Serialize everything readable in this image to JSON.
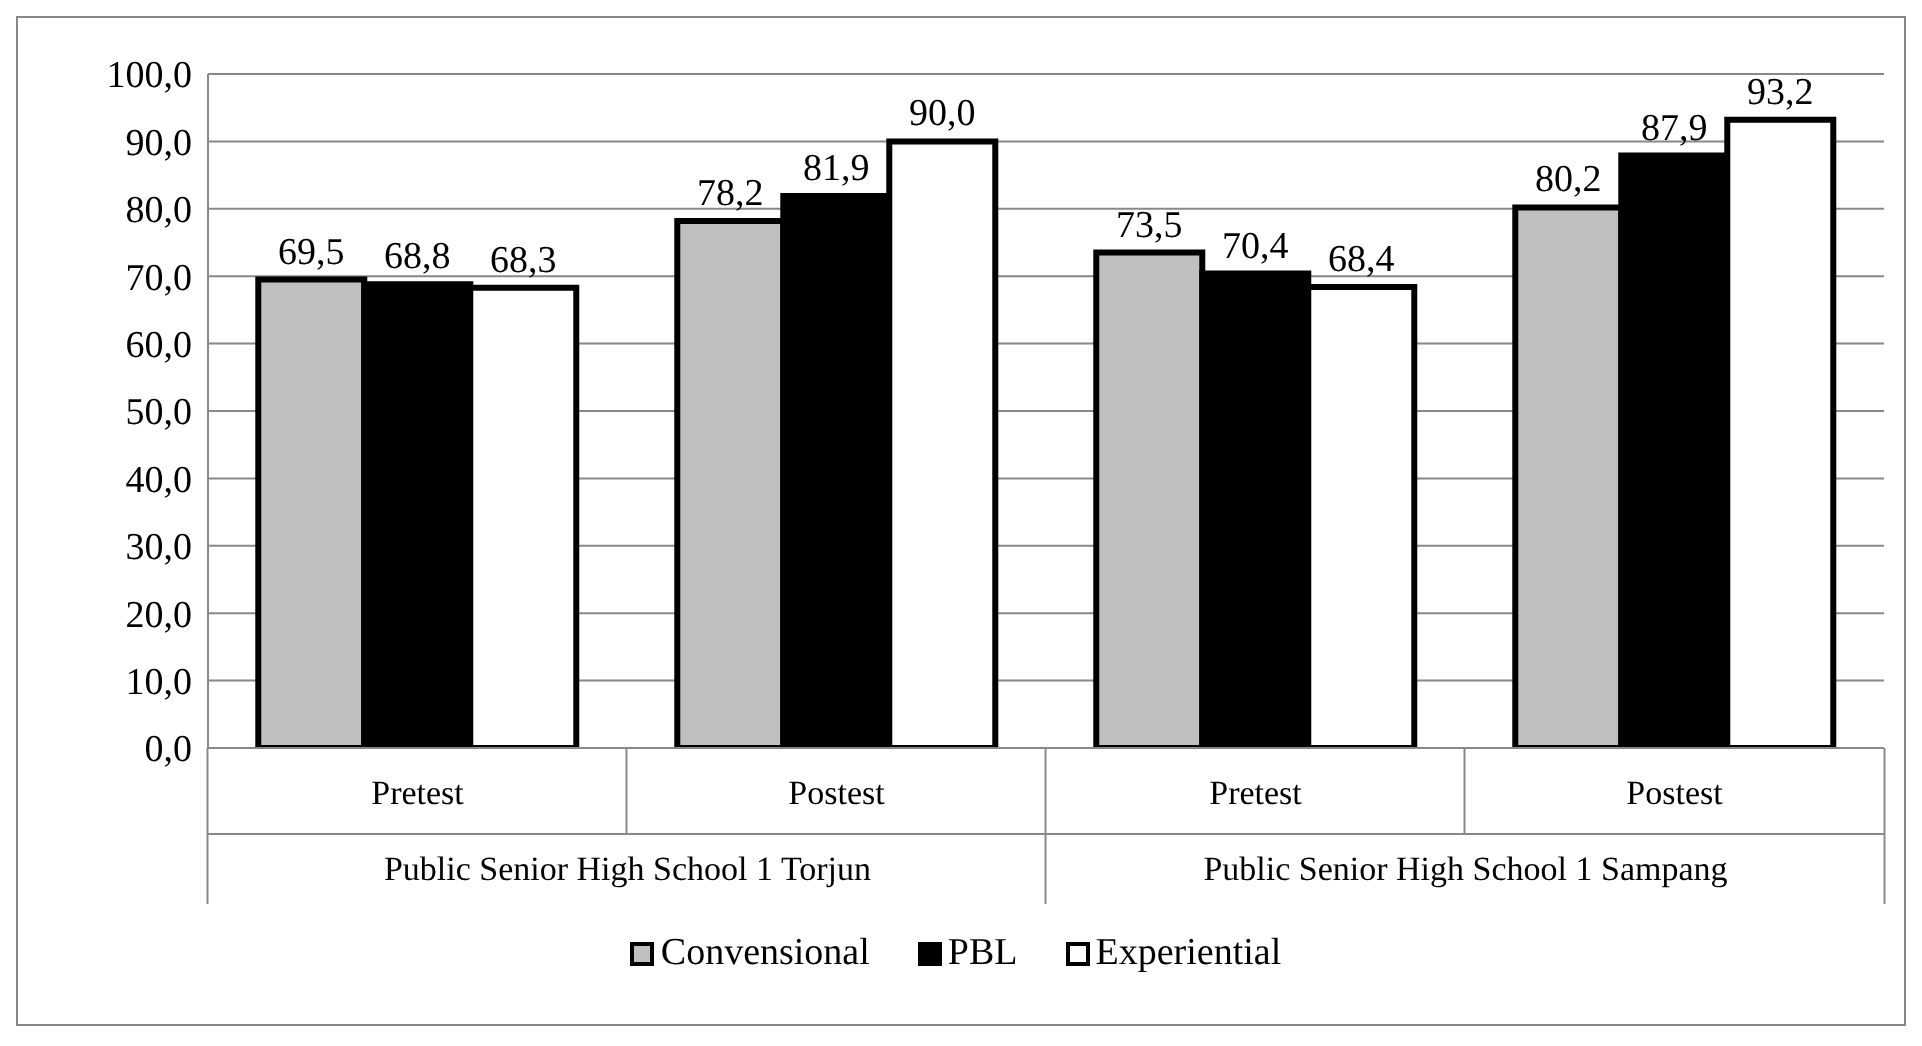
{
  "chart_data": {
    "type": "bar",
    "categories": [
      "Pretest",
      "Postest",
      "Pretest",
      "Postest"
    ],
    "annotations": [
      "Public Senior High School 1 Torjun",
      "Public Senior High School 1 Sampang"
    ],
    "series": [
      {
        "name": "Convensional",
        "color": "#bfbfbf",
        "values": [
          69.5,
          78.2,
          73.5,
          80.2
        ],
        "value_labels": [
          "69,5",
          "78,2",
          "73,5",
          "80,2"
        ]
      },
      {
        "name": "PBL",
        "color": "#000000",
        "values": [
          68.8,
          81.9,
          70.4,
          87.9
        ],
        "value_labels": [
          "68,8",
          "81,9",
          "70,4",
          "87,9"
        ]
      },
      {
        "name": "Experiential",
        "color": "#ffffff",
        "values": [
          68.3,
          90.0,
          68.4,
          93.2
        ],
        "value_labels": [
          "68,3",
          "90,0",
          "68,4",
          "93,2"
        ]
      }
    ],
    "ylim": [
      0,
      100
    ],
    "yticks": [
      {
        "value": 0,
        "label": "0,0"
      },
      {
        "value": 10,
        "label": "10,0"
      },
      {
        "value": 20,
        "label": "20,0"
      },
      {
        "value": 30,
        "label": "30,0"
      },
      {
        "value": 40,
        "label": "40,0"
      },
      {
        "value": 50,
        "label": "50,0"
      },
      {
        "value": 60,
        "label": "60,0"
      },
      {
        "value": 70,
        "label": "70,0"
      },
      {
        "value": 80,
        "label": "80,0"
      },
      {
        "value": 90,
        "label": "90,0"
      },
      {
        "value": 100,
        "label": "100,0"
      }
    ],
    "grid": "y",
    "legend": "bottom"
  }
}
